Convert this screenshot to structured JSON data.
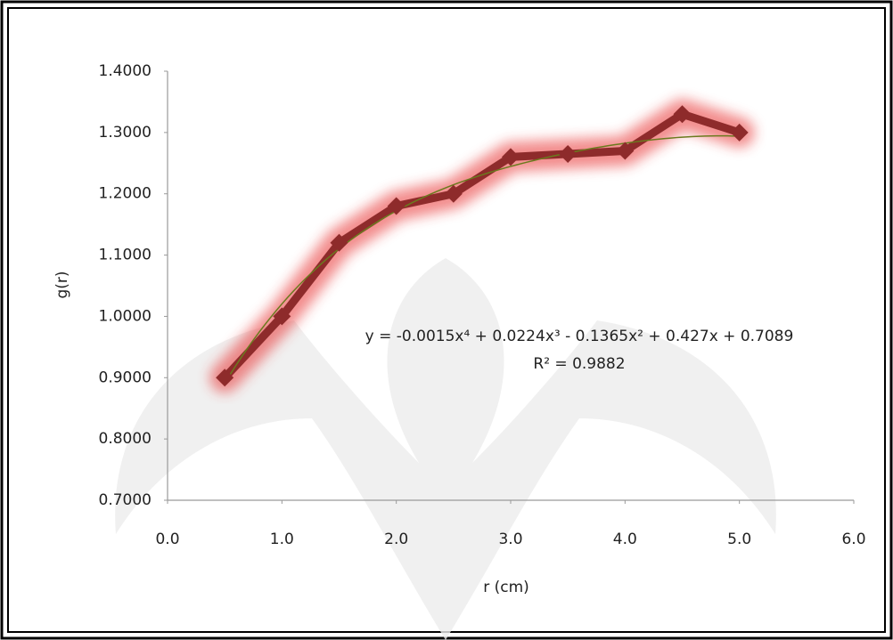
{
  "chart_data": {
    "type": "line",
    "x": [
      0.5,
      1.0,
      1.5,
      2.0,
      2.5,
      3.0,
      3.5,
      4.0,
      4.5,
      5.0
    ],
    "values": [
      0.9,
      1.0,
      1.12,
      1.18,
      1.2,
      1.26,
      1.265,
      1.27,
      1.33,
      1.3
    ],
    "color": "#8e2b2b",
    "xlabel": "r (cm)",
    "ylabel": "g(r)",
    "xlim": [
      0,
      6
    ],
    "ylim": [
      0.7,
      1.4
    ],
    "xticks": [
      {
        "value": 0,
        "label": "0.0"
      },
      {
        "value": 1,
        "label": "1.0"
      },
      {
        "value": 2,
        "label": "2.0"
      },
      {
        "value": 3,
        "label": "3.0"
      },
      {
        "value": 4,
        "label": "4.0"
      },
      {
        "value": 5,
        "label": "5.0"
      },
      {
        "value": 6,
        "label": "6.0"
      }
    ],
    "yticks": [
      {
        "value": 0.7,
        "label": "0.7000"
      },
      {
        "value": 0.8,
        "label": "0.8000"
      },
      {
        "value": 0.9,
        "label": "0.9000"
      },
      {
        "value": 1.0,
        "label": "1.0000"
      },
      {
        "value": 1.1,
        "label": "1.1000"
      },
      {
        "value": 1.2,
        "label": "1.2000"
      },
      {
        "value": 1.3,
        "label": "1.3000"
      },
      {
        "value": 1.4,
        "label": "1.4000"
      }
    ],
    "trendline": {
      "coefficients": [
        -0.0015,
        0.0224,
        -0.1365,
        0.427,
        0.7089
      ],
      "color": "#6b7a1e",
      "equation": "y = -0.0015x⁴ + 0.0224x³ - 0.1365x² + 0.427x + 0.7089",
      "r2_label": "R² = 0.9882"
    }
  }
}
